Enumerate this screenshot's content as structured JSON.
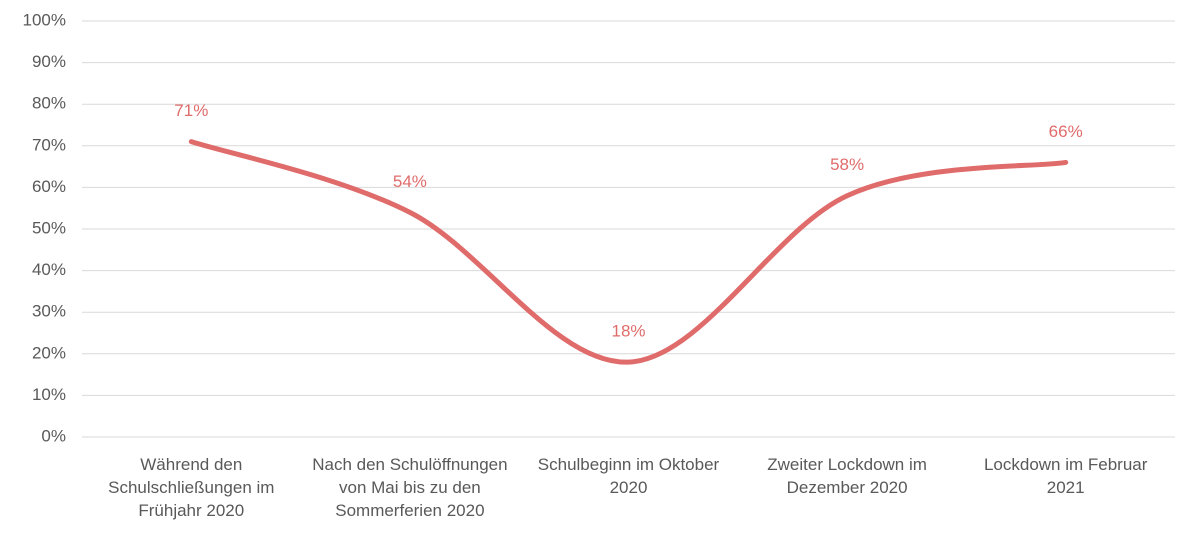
{
  "chart_data": {
    "type": "line",
    "categories": [
      "Während den Schulschließungen im Frühjahr 2020",
      "Nach den Schulöffnungen von Mai bis zu den Sommerferien 2020",
      "Schulbeginn im Oktober 2020",
      "Zweiter Lockdown im Dezember 2020",
      "Lockdown im Februar 2021"
    ],
    "series": [
      {
        "color": "#e06b6b",
        "values": [
          71,
          54,
          18,
          58,
          66
        ],
        "value_labels": [
          "71%",
          "54%",
          "18%",
          "58%",
          "66%"
        ]
      }
    ],
    "ylim": [
      0,
      100
    ],
    "yticks": [
      {
        "value": 0,
        "label": "0%"
      },
      {
        "value": 10,
        "label": "10%"
      },
      {
        "value": 20,
        "label": "20%"
      },
      {
        "value": 30,
        "label": "30%"
      },
      {
        "value": 40,
        "label": "40%"
      },
      {
        "value": 50,
        "label": "50%"
      },
      {
        "value": 60,
        "label": "60%"
      },
      {
        "value": 70,
        "label": "70%"
      },
      {
        "value": 80,
        "label": "80%"
      },
      {
        "value": 90,
        "label": "90%"
      },
      {
        "value": 100,
        "label": "100%"
      }
    ],
    "grid": true,
    "smooth": true
  }
}
